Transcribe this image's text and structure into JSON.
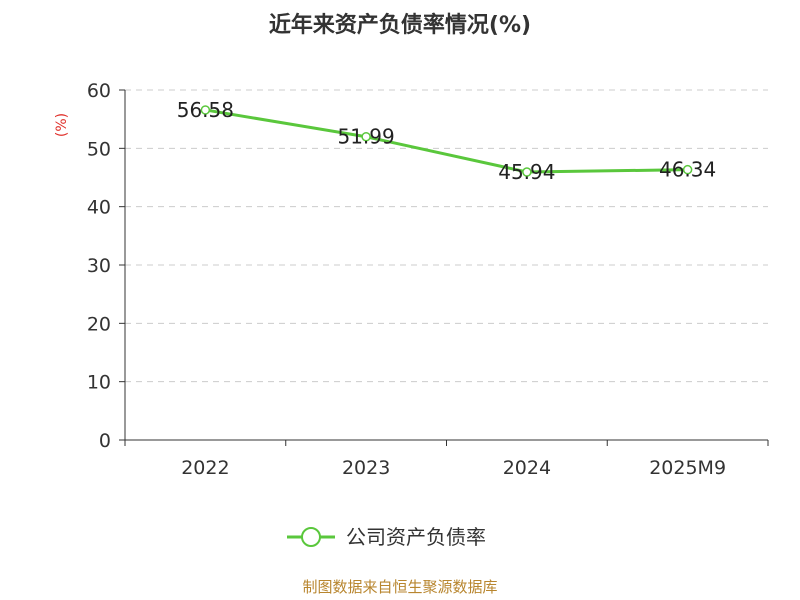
{
  "chart_data": {
    "type": "line",
    "title": "近年来资产负债率情况(%)",
    "ylabel": "(%)",
    "xlabel": "",
    "categories": [
      "2022",
      "2023",
      "2024",
      "2025M9"
    ],
    "series": [
      {
        "name": "公司资产负债率",
        "values": [
          56.58,
          51.99,
          45.94,
          46.34
        ],
        "labels": [
          "56.58",
          "51.99",
          "45.94",
          "46.34"
        ]
      }
    ],
    "ylim": [
      0,
      60
    ],
    "yticks": [
      "0",
      "10",
      "20",
      "30",
      "40",
      "50",
      "60"
    ],
    "grid": true,
    "legend": "bottom-center",
    "colors": {
      "line": "#5ac73c",
      "ylabel": "#e0312b",
      "source": "#b8862f",
      "title": "#333333",
      "grid": "#cccccc",
      "axis": "#333333",
      "tick_text": "#333333"
    }
  },
  "source_note": "制图数据来自恒生聚源数据库"
}
